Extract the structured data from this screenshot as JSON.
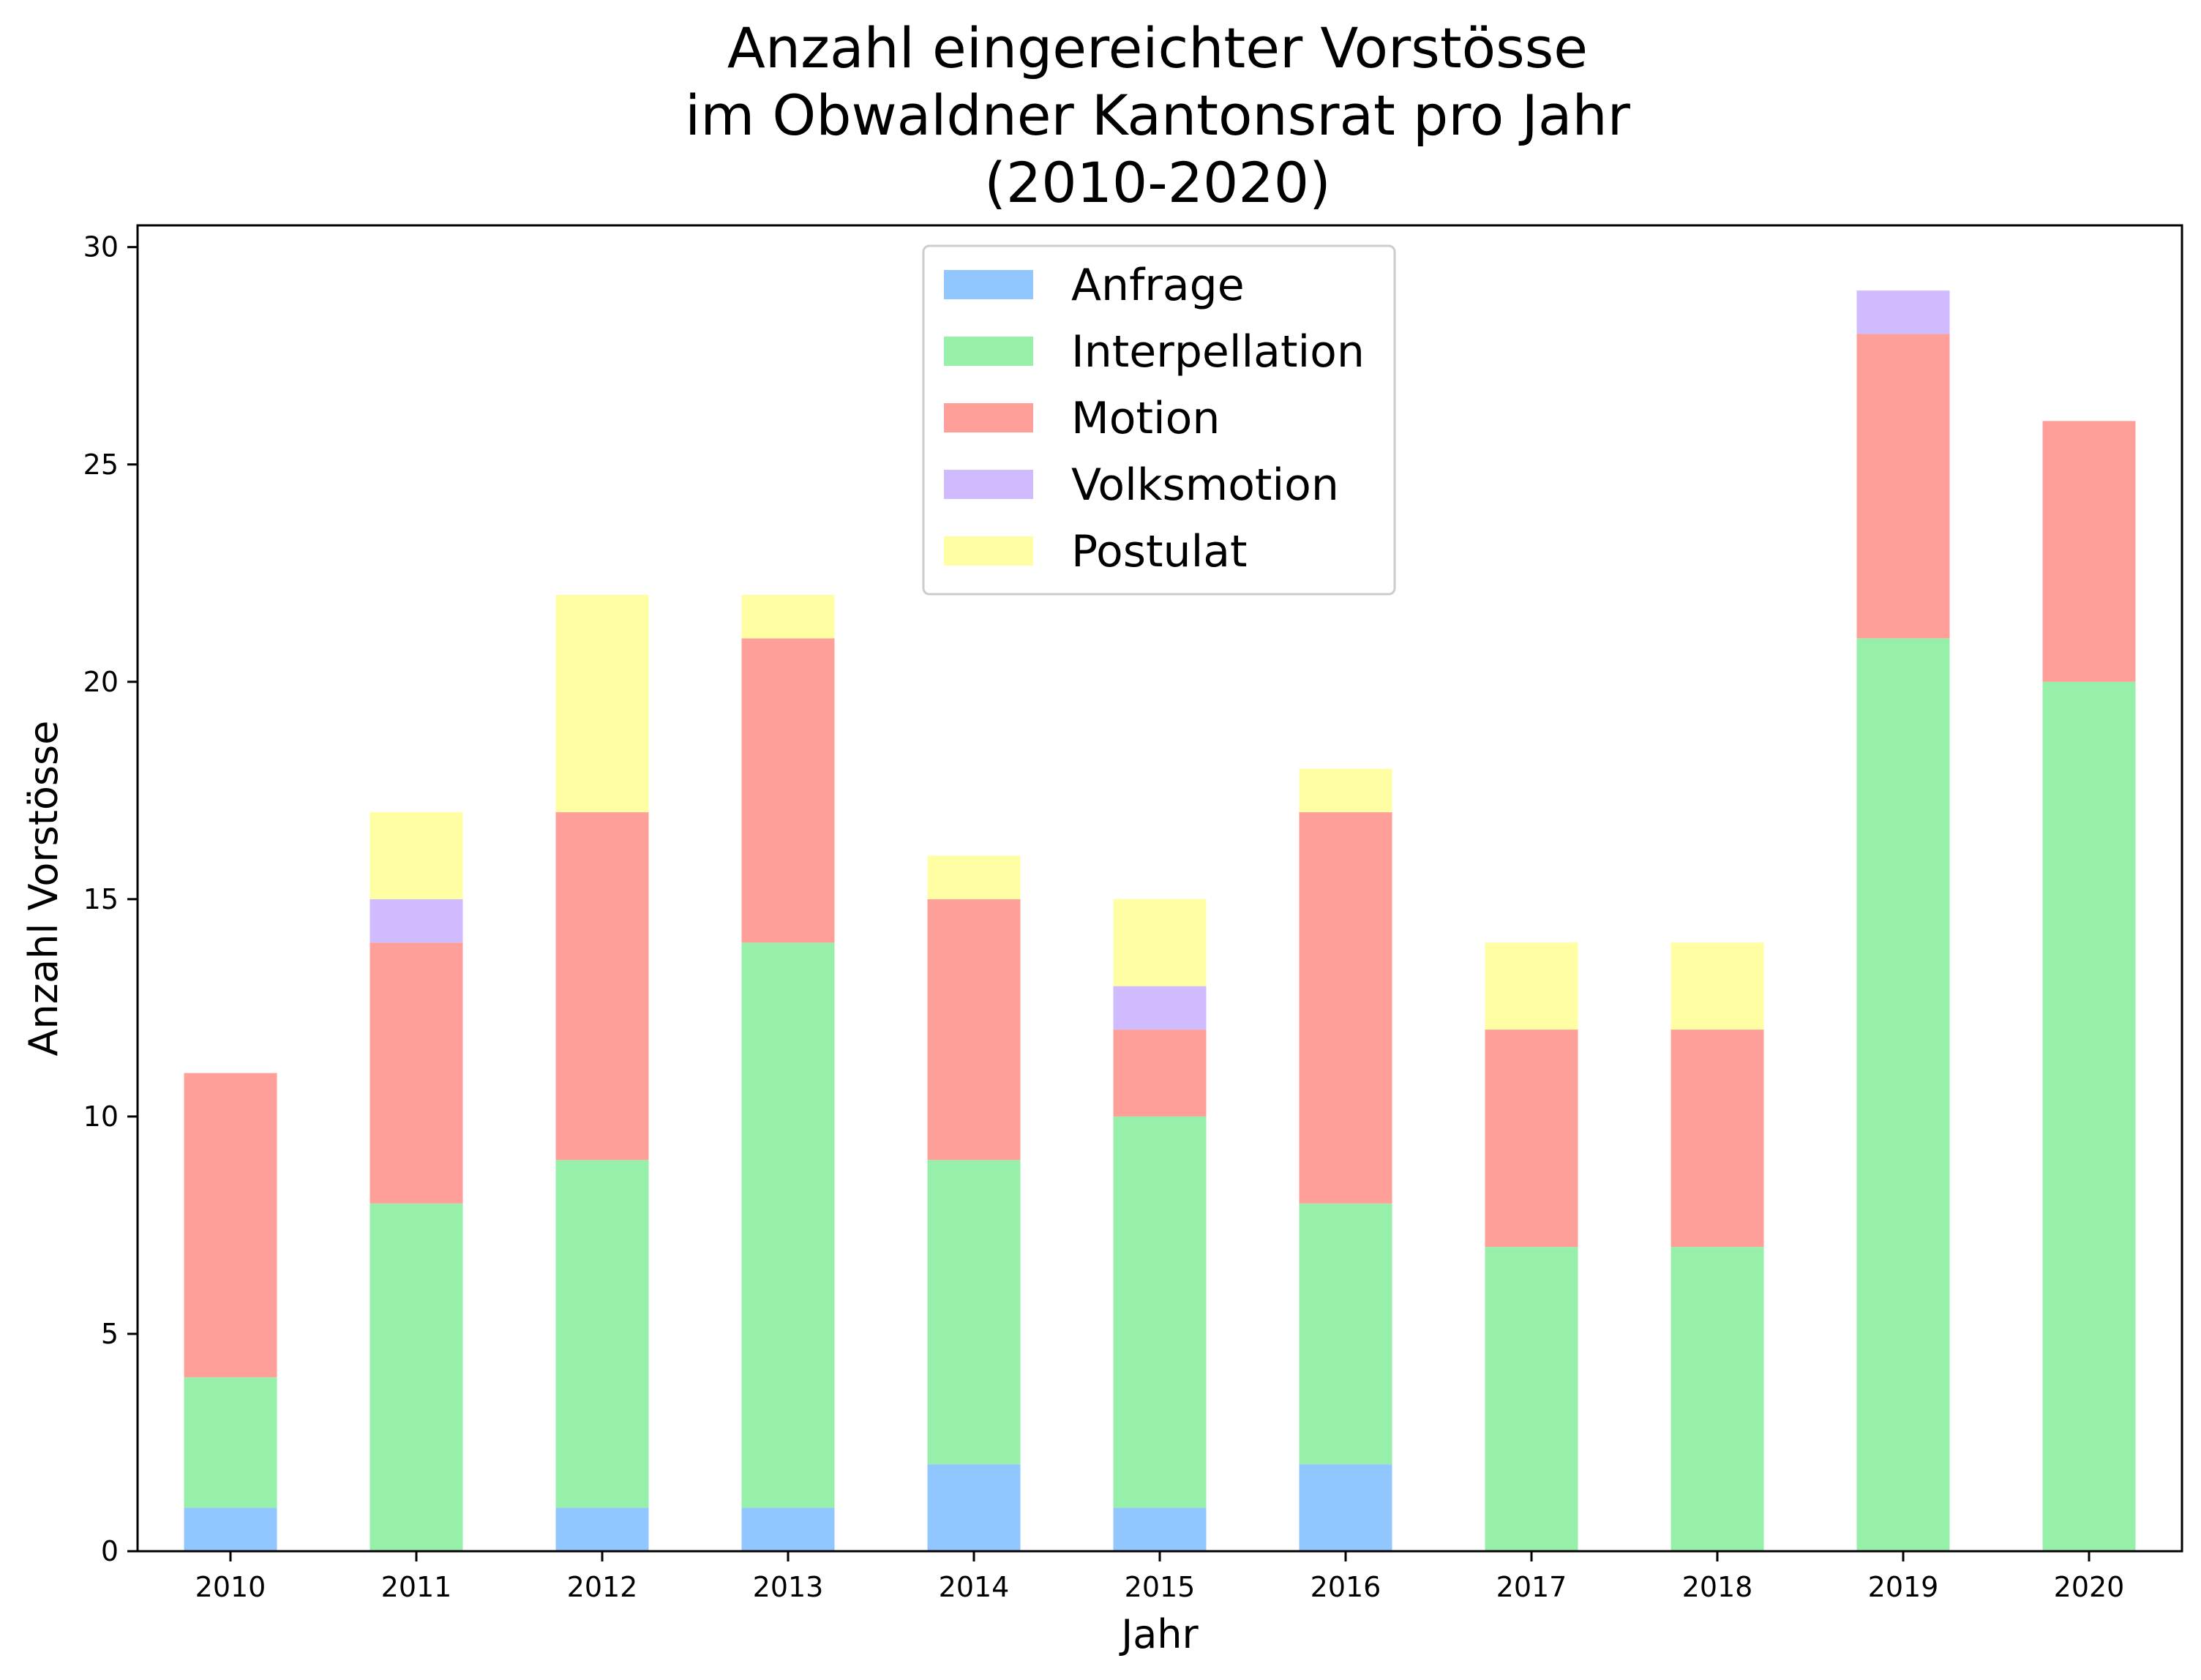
{
  "chart_data": {
    "type": "bar",
    "stacked": true,
    "title": [
      "Anzahl eingereichter Vorstösse",
      "im Obwaldner Kantonsrat pro Jahr",
      "(2010-2020)"
    ],
    "xlabel": "Jahr",
    "ylabel": "Anzahl Vorstösse",
    "ylim": [
      0,
      30.5
    ],
    "yticks": [
      0,
      5,
      10,
      15,
      20,
      25,
      30
    ],
    "grid": false,
    "legend_position": "top-center",
    "categories": [
      "2010",
      "2011",
      "2012",
      "2013",
      "2014",
      "2015",
      "2016",
      "2017",
      "2018",
      "2019",
      "2020"
    ],
    "series": [
      {
        "name": "Anfrage",
        "color": "#92c6ff",
        "values": [
          1,
          0,
          1,
          1,
          2,
          1,
          2,
          0,
          0,
          0,
          0
        ]
      },
      {
        "name": "Interpellation",
        "color": "#97f0aa",
        "values": [
          3,
          8,
          8,
          13,
          7,
          9,
          6,
          7,
          7,
          21,
          20
        ]
      },
      {
        "name": "Motion",
        "color": "#ff9f9a",
        "values": [
          7,
          6,
          8,
          7,
          6,
          2,
          9,
          5,
          5,
          7,
          6
        ]
      },
      {
        "name": "Volksmotion",
        "color": "#d0bbff",
        "values": [
          0,
          1,
          0,
          0,
          0,
          1,
          0,
          0,
          0,
          1,
          0
        ]
      },
      {
        "name": "Postulat",
        "color": "#fffea3",
        "values": [
          0,
          2,
          5,
          1,
          1,
          2,
          1,
          2,
          2,
          0,
          0
        ]
      }
    ]
  }
}
